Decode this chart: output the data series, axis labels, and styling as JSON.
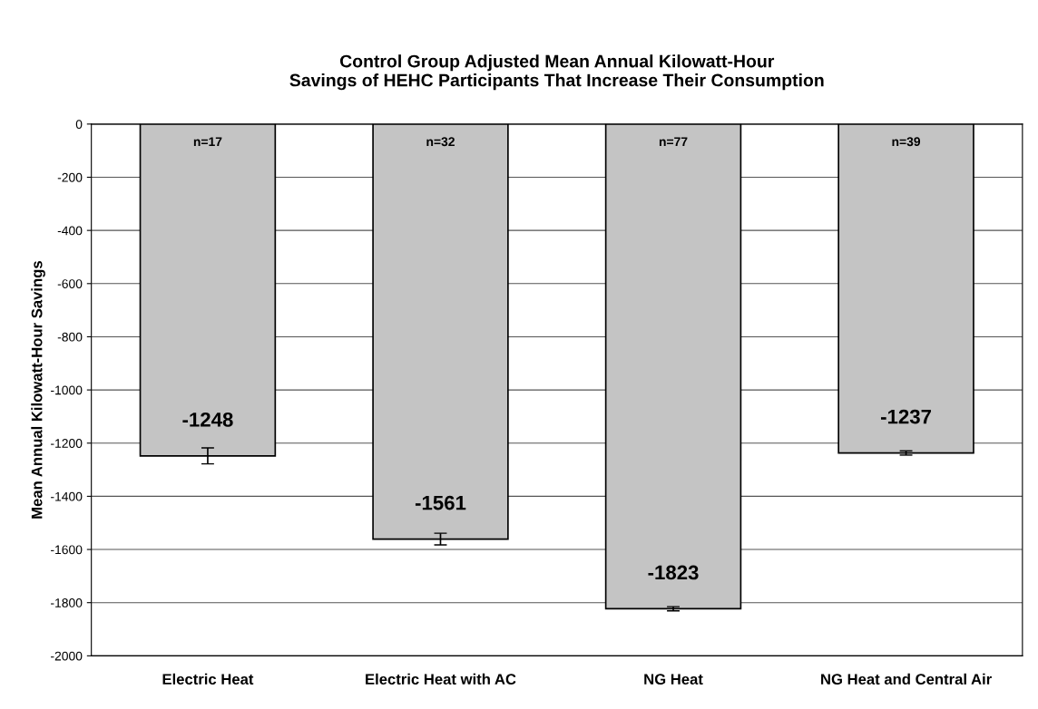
{
  "chart_data": {
    "type": "bar",
    "title": "Control Group Adjusted Mean Annual Kilowatt-Hour\nSavings of HEHC Participants That Increase Their Consumption",
    "ylabel": "Mean Annual Kilowatt-Hour Savings",
    "categories": [
      "Electric Heat",
      "Electric Heat with AC",
      "NG Heat",
      "NG Heat and Central Air"
    ],
    "values": [
      -1248,
      -1561,
      -1823,
      -1237
    ],
    "errors": [
      30,
      22,
      8,
      8
    ],
    "color": "#c4c4c4",
    "data_labels": true,
    "annotations": [
      "n=17",
      "n=32",
      "n=77",
      "n=39"
    ],
    "ylim": [
      -2000,
      0
    ],
    "yticks": [
      0,
      -200,
      -400,
      -600,
      -800,
      -1000,
      -1200,
      -1400,
      -1600,
      -1800,
      -2000
    ],
    "grid": "y",
    "legend": false
  }
}
